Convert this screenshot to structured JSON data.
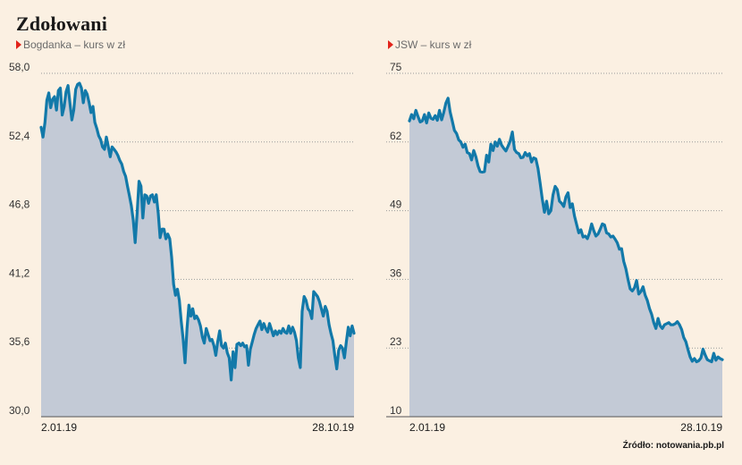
{
  "title": "Zdołowani",
  "source": "Źródło: notowania.pb.pl",
  "colors": {
    "line": "#1279a9",
    "fill": "#c3cad6",
    "grid": "#9a9a9a",
    "marker": "#e2231a",
    "background": "#fbf0e2"
  },
  "chart_data": [
    {
      "type": "area",
      "title": "Bogdanka – kurs w zł",
      "yticks": [
        "58,0",
        "52,4",
        "46,8",
        "41,2",
        "35,6",
        "30,0"
      ],
      "ylim": [
        30.0,
        58.0
      ],
      "xtick_labels": [
        "2.01.19",
        "28.10.19"
      ],
      "series": [
        {
          "values": [
            53.6,
            52.8,
            54.0,
            55.8,
            56.4,
            55.2,
            55.9,
            56.1,
            55.0,
            56.6,
            56.8,
            54.6,
            55.3,
            56.5,
            57.0,
            55.6,
            54.2,
            55.0,
            56.7,
            57.1,
            57.2,
            56.8,
            55.6,
            56.6,
            56.3,
            55.6,
            54.8,
            55.3,
            54.0,
            53.5,
            52.9,
            52.6,
            52.0,
            51.8,
            52.8,
            52.0,
            51.2,
            52.0,
            51.8,
            51.6,
            51.3,
            50.9,
            50.6,
            50.0,
            49.6,
            48.8,
            48.0,
            47.2,
            46.0,
            44.2,
            46.6,
            49.2,
            48.8,
            46.2,
            48.1,
            48.0,
            47.4,
            48.0,
            48.1,
            47.5,
            48.1,
            46.6,
            44.6,
            45.3,
            45.3,
            44.5,
            44.9,
            44.5,
            43.0,
            40.8,
            39.9,
            40.4,
            39.5,
            37.8,
            36.3,
            34.4,
            37.2,
            39.1,
            38.2,
            38.8,
            38.0,
            38.2,
            37.9,
            37.4,
            36.5,
            36.0,
            37.2,
            36.7,
            36.2,
            36.3,
            35.8,
            35.0,
            36.1,
            37.0,
            35.8,
            35.6,
            36.0,
            35.2,
            34.8,
            33.0,
            35.3,
            34.0,
            35.9,
            36.0,
            35.8,
            36.0,
            35.7,
            35.8,
            34.2,
            35.5,
            36.1,
            36.7,
            37.2,
            37.5,
            37.8,
            37.1,
            37.6,
            37.2,
            36.9,
            37.6,
            37.1,
            36.6,
            37.0,
            36.7,
            37.0,
            36.8,
            37.2,
            36.9,
            36.8,
            37.4,
            36.8,
            37.3,
            36.9,
            36.2,
            34.8,
            34.0,
            38.6,
            39.8,
            39.5,
            38.8,
            38.6,
            38.0,
            40.2,
            40.0,
            39.8,
            39.4,
            38.8,
            38.2,
            39.0,
            38.6,
            37.5,
            36.8,
            36.2,
            35.0,
            33.9,
            35.4,
            35.8,
            35.6,
            34.8,
            36.1,
            37.3,
            36.6,
            37.4,
            36.8
          ]
        }
      ]
    },
    {
      "type": "area",
      "title": "JSW – kurs w zł",
      "yticks": [
        "75",
        "62",
        "49",
        "36",
        "23",
        "10"
      ],
      "ylim": [
        10,
        75
      ],
      "xtick_labels": [
        "2.01.19",
        "28.10.19"
      ],
      "series": [
        {
          "values": [
            66.0,
            67.2,
            66.4,
            68.0,
            66.8,
            65.8,
            66.0,
            67.2,
            65.6,
            67.5,
            66.5,
            66.3,
            67.0,
            66.1,
            68.0,
            66.2,
            67.6,
            69.4,
            70.3,
            67.7,
            66.0,
            64.2,
            63.6,
            62.4,
            62.0,
            61.0,
            61.6,
            60.0,
            59.8,
            58.6,
            60.4,
            59.2,
            57.5,
            56.4,
            56.3,
            56.4,
            59.5,
            58.2,
            61.6,
            60.4,
            62.0,
            61.2,
            62.5,
            61.4,
            60.8,
            60.3,
            61.2,
            62.2,
            63.9,
            60.6,
            60.0,
            59.8,
            59.0,
            59.1,
            60.0,
            59.4,
            59.8,
            58.2,
            59.0,
            58.8,
            57.0,
            54.2,
            51.2,
            48.7,
            50.8,
            48.4,
            49.0,
            52.0,
            53.6,
            53.0,
            50.8,
            50.4,
            49.8,
            51.6,
            52.4,
            49.6,
            50.3,
            48.0,
            46.4,
            44.8,
            45.4,
            44.0,
            44.2,
            43.7,
            44.8,
            46.5,
            45.2,
            44.2,
            44.6,
            45.5,
            46.5,
            46.3,
            44.8,
            44.6,
            44.0,
            44.2,
            43.6,
            42.9,
            41.7,
            41.8,
            39.4,
            38.0,
            36.0,
            34.2,
            33.8,
            34.4,
            35.8,
            33.2,
            33.7,
            34.6,
            33.0,
            32.0,
            30.5,
            29.4,
            27.8,
            26.7,
            28.6,
            27.2,
            26.7,
            27.4,
            27.6,
            27.8,
            27.4,
            27.4,
            27.6,
            28.0,
            27.4,
            26.5,
            25.0,
            24.2,
            22.7,
            21.3,
            20.5,
            21.0,
            20.4,
            20.6,
            21.1,
            22.8,
            21.7,
            20.8,
            20.6,
            20.4,
            22.0,
            20.7,
            21.3,
            21.0,
            20.8
          ]
        }
      ]
    }
  ]
}
